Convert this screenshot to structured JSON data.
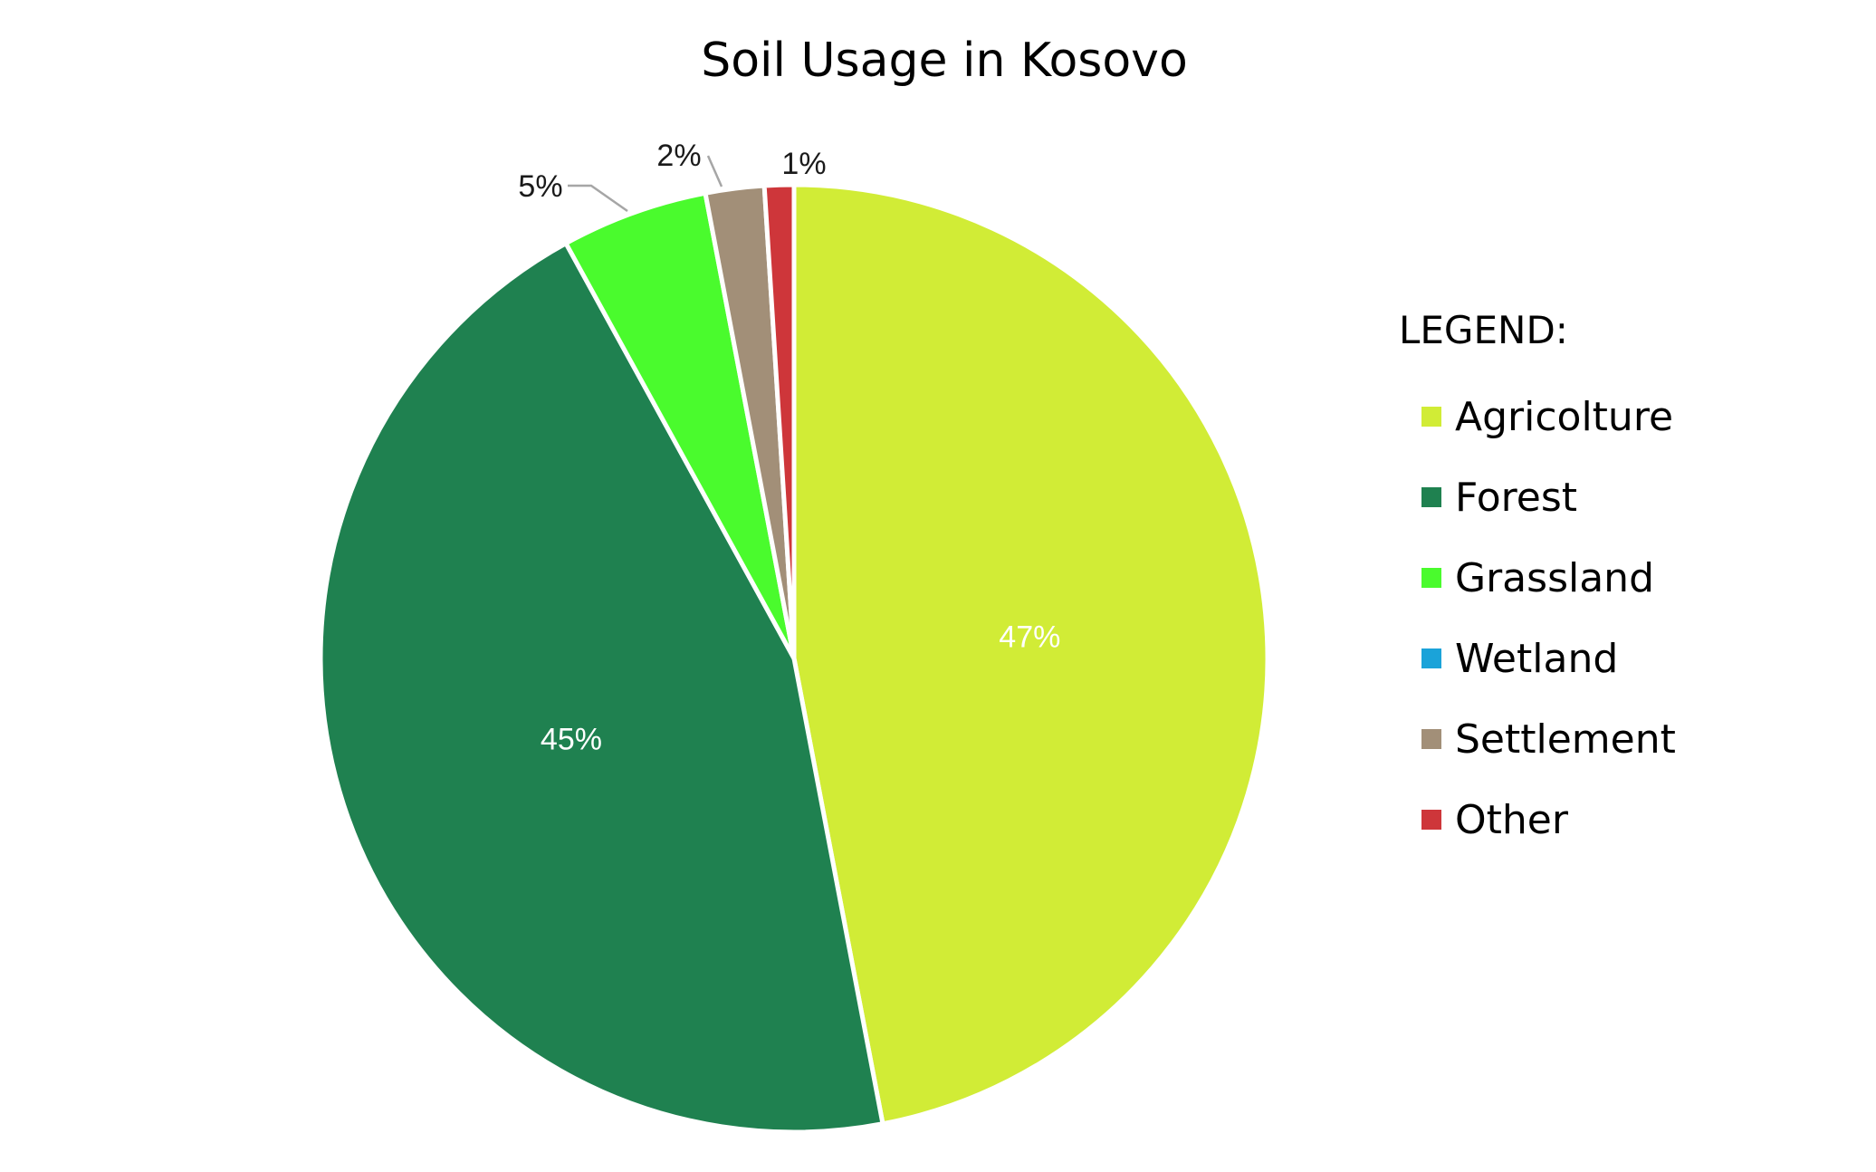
{
  "chart_data": {
    "type": "pie",
    "title": "Soil Usage in Kosovo",
    "legend_title": "LEGEND:",
    "legend_position": "right",
    "start_angle_deg": 0,
    "direction": "clockwise",
    "slices": [
      {
        "name": "Agricolture",
        "value": 47,
        "label": "47%",
        "color": "#D1EC36",
        "label_position": "inside"
      },
      {
        "name": "Forest",
        "value": 45,
        "label": "45%",
        "color": "#1F8150",
        "label_position": "inside"
      },
      {
        "name": "Grassland",
        "value": 5,
        "label": "5%",
        "color": "#4AFB2D",
        "label_position": "outside"
      },
      {
        "name": "Wetland",
        "value": 0,
        "label": "",
        "color": "#1BA3D9",
        "label_position": "none"
      },
      {
        "name": "Settlement",
        "value": 2,
        "label": "2%",
        "color": "#A28F78",
        "label_position": "outside"
      },
      {
        "name": "Other",
        "value": 1,
        "label": "1%",
        "color": "#CE363A",
        "label_position": "outside"
      }
    ]
  }
}
